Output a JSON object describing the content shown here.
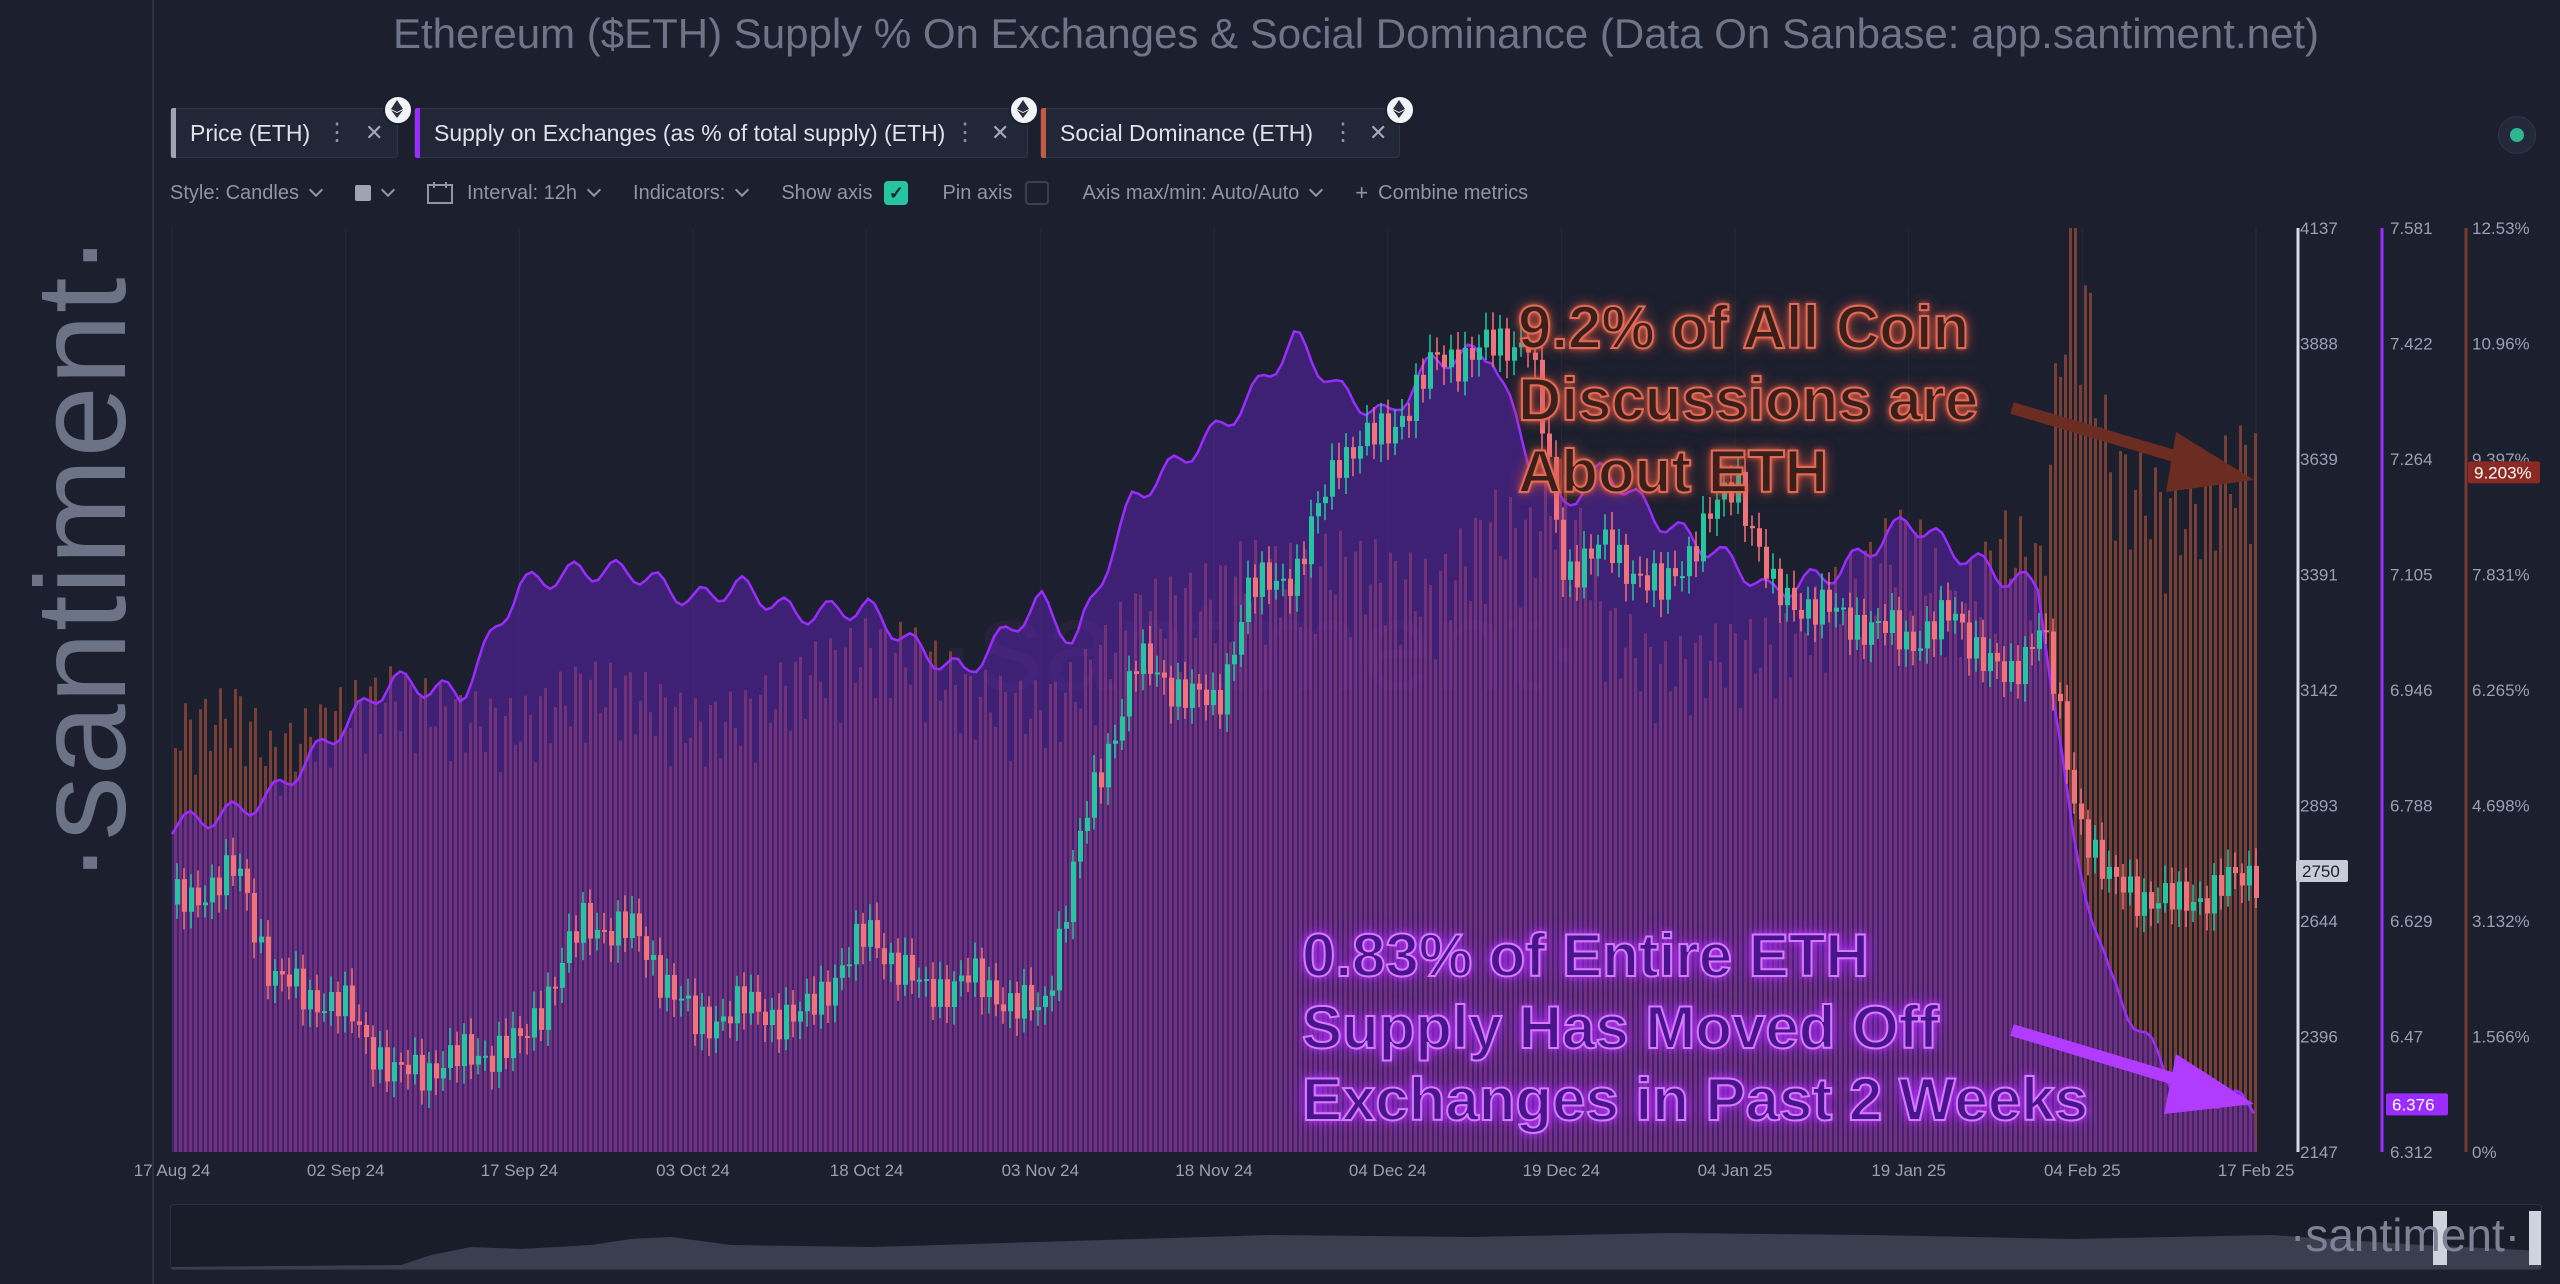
{
  "title": "Ethereum ($ETH) Supply % On Exchanges & Social Dominance (Data On Sanbase: app.santiment.net)",
  "brand": "·santiment·",
  "nav_brand": "·santiment·",
  "metrics": [
    {
      "label": "Price (ETH)",
      "color": "#9ea3b5",
      "icon": "eth-icon"
    },
    {
      "label": "Supply on Exchanges (as % of total supply) (ETH)",
      "color": "#9b2cff",
      "icon": "eth-icon"
    },
    {
      "label": "Social Dominance (ETH)",
      "color": "#c55a3e",
      "icon": "eth-icon"
    }
  ],
  "toolbar": {
    "style": "Style: Candles",
    "interval": "Interval: 12h",
    "indicators": "Indicators:",
    "show_axis": "Show axis",
    "pin_axis": "Pin axis",
    "axis_minmax": "Axis max/min: Auto/Auto",
    "combine": "Combine metrics",
    "show_axis_checked": true
  },
  "annotations": {
    "social": "9.2% of All Coin\nDiscussions are\nAbout ETH",
    "supply": "0.83% of Entire ETH\nSupply Has Moved Off\nExchanges in Past 2 Weeks"
  },
  "chart_data": {
    "type": "line",
    "x_ticks": [
      "17 Aug 24",
      "02 Sep 24",
      "17 Sep 24",
      "03 Oct 24",
      "18 Oct 24",
      "03 Nov 24",
      "18 Nov 24",
      "04 Dec 24",
      "19 Dec 24",
      "04 Jan 25",
      "19 Jan 25",
      "04 Feb 25",
      "17 Feb 25"
    ],
    "axes": {
      "price": {
        "ticks": [
          "4137",
          "3888",
          "3639",
          "3391",
          "3142",
          "2893",
          "2644",
          "2396",
          "2147"
        ],
        "min": 2147,
        "max": 4137,
        "current": "2750"
      },
      "supply": {
        "ticks": [
          "7.581",
          "7.422",
          "7.264",
          "7.105",
          "6.946",
          "6.788",
          "6.629",
          "6.47",
          "6.312"
        ],
        "min": 6.312,
        "max": 7.581,
        "current": "6.376"
      },
      "social": {
        "ticks": [
          "12.53%",
          "10.96%",
          "9.397%",
          "7.831%",
          "6.265%",
          "4.698%",
          "3.132%",
          "1.566%",
          "0%"
        ],
        "min": 0,
        "max": 12.53,
        "current": "9.203%"
      }
    },
    "series": [
      {
        "name": "Price (ETH)",
        "style": "candles",
        "colors": {
          "up": "#26c4a0",
          "down": "#f0727a"
        },
        "x": [
          "17 Aug 24",
          "23 Aug 24",
          "26 Aug 24",
          "02 Sep 24",
          "06 Sep 24",
          "12 Sep 24",
          "17 Sep 24",
          "23 Sep 24",
          "28 Sep 24",
          "03 Oct 24",
          "07 Oct 24",
          "12 Oct 24",
          "18 Oct 24",
          "23 Oct 24",
          "27 Oct 24",
          "03 Nov 24",
          "06 Nov 24",
          "11 Nov 24",
          "18 Nov 24",
          "21 Nov 24",
          "26 Nov 24",
          "30 Nov 24",
          "04 Dec 24",
          "08 Dec 24",
          "13 Dec 24",
          "16 Dec 24",
          "19 Dec 24",
          "23 Dec 24",
          "28 Dec 24",
          "04 Jan 25",
          "07 Jan 25",
          "13 Jan 25",
          "19 Jan 25",
          "23 Jan 25",
          "28 Jan 25",
          "31 Jan 25",
          "03 Feb 25",
          "06 Feb 25",
          "11 Feb 25",
          "17 Feb 25"
        ],
        "y": [
          2680,
          2750,
          2520,
          2450,
          2310,
          2350,
          2380,
          2640,
          2620,
          2420,
          2460,
          2430,
          2620,
          2490,
          2520,
          2440,
          2800,
          3200,
          3100,
          3350,
          3400,
          3650,
          3700,
          3850,
          3880,
          3900,
          3400,
          3450,
          3350,
          3600,
          3350,
          3300,
          3250,
          3300,
          3150,
          3300,
          2900,
          2720,
          2680,
          2750
        ]
      },
      {
        "name": "Supply on Exchanges (as % of total supply) (ETH)",
        "style": "area",
        "color": "#9b2cff",
        "x": [
          "17 Aug 24",
          "23 Aug 24",
          "26 Aug 24",
          "02 Sep 24",
          "06 Sep 24",
          "12 Sep 24",
          "17 Sep 24",
          "23 Sep 24",
          "28 Sep 24",
          "03 Oct 24",
          "07 Oct 24",
          "12 Oct 24",
          "18 Oct 24",
          "23 Oct 24",
          "27 Oct 24",
          "03 Nov 24",
          "06 Nov 24",
          "11 Nov 24",
          "18 Nov 24",
          "21 Nov 24",
          "26 Nov 24",
          "30 Nov 24",
          "04 Dec 24",
          "08 Dec 24",
          "13 Dec 24",
          "16 Dec 24",
          "19 Dec 24",
          "23 Dec 24",
          "28 Dec 24",
          "04 Jan 25",
          "07 Jan 25",
          "13 Jan 25",
          "19 Jan 25",
          "23 Jan 25",
          "28 Jan 25",
          "31 Jan 25",
          "03 Feb 25",
          "06 Feb 25",
          "11 Feb 25",
          "17 Feb 25"
        ],
        "y": [
          6.76,
          6.78,
          6.8,
          6.9,
          6.96,
          6.94,
          7.09,
          7.11,
          7.11,
          7.07,
          7.09,
          7.05,
          7.06,
          7.0,
          6.97,
          7.07,
          7.01,
          7.21,
          7.3,
          7.34,
          7.43,
          7.36,
          7.32,
          7.4,
          7.41,
          7.27,
          7.2,
          7.25,
          7.18,
          7.12,
          7.08,
          7.11,
          7.18,
          7.14,
          7.1,
          7.09,
          6.75,
          6.55,
          6.4,
          6.376
        ]
      },
      {
        "name": "Social Dominance (ETH)",
        "style": "bars",
        "color": "#c55a3e",
        "x": [
          "17 Aug 24",
          "23 Aug 24",
          "26 Aug 24",
          "02 Sep 24",
          "06 Sep 24",
          "12 Sep 24",
          "17 Sep 24",
          "23 Sep 24",
          "28 Sep 24",
          "03 Oct 24",
          "07 Oct 24",
          "12 Oct 24",
          "18 Oct 24",
          "23 Oct 24",
          "27 Oct 24",
          "03 Nov 24",
          "06 Nov 24",
          "11 Nov 24",
          "18 Nov 24",
          "21 Nov 24",
          "26 Nov 24",
          "30 Nov 24",
          "04 Dec 24",
          "08 Dec 24",
          "13 Dec 24",
          "16 Dec 24",
          "19 Dec 24",
          "23 Dec 24",
          "28 Dec 24",
          "04 Jan 25",
          "07 Jan 25",
          "13 Jan 25",
          "19 Jan 25",
          "23 Jan 25",
          "28 Jan 25",
          "31 Jan 25",
          "03 Feb 25",
          "06 Feb 25",
          "11 Feb 25",
          "17 Feb 25"
        ],
        "y": [
          5.5,
          5.8,
          5.2,
          5.8,
          6.0,
          5.7,
          5.6,
          6.1,
          6.0,
          5.6,
          5.7,
          6.2,
          6.6,
          6.5,
          6.0,
          5.8,
          6.1,
          7.0,
          7.3,
          7.6,
          7.5,
          7.7,
          7.5,
          7.3,
          8.2,
          8.0,
          8.7,
          6.9,
          6.3,
          6.6,
          6.6,
          7.3,
          8.1,
          7.0,
          8.0,
          7.6,
          12.2,
          8.9,
          8.3,
          9.203
        ]
      }
    ]
  }
}
